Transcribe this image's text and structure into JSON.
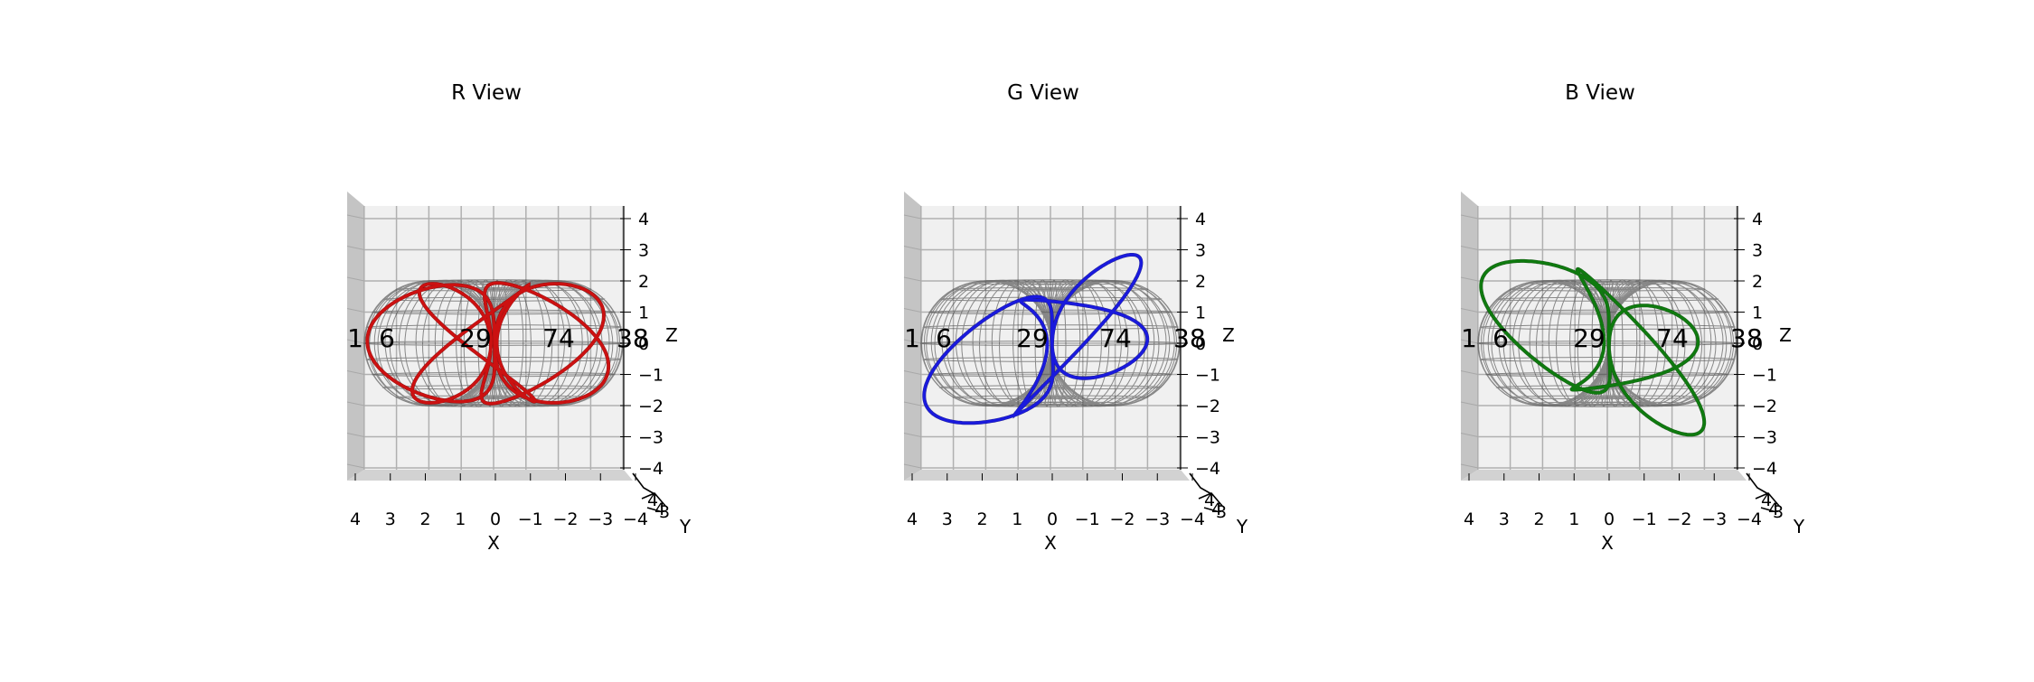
{
  "figure": {
    "background": "#ffffff"
  },
  "chart_data": [
    {
      "type": "3d-line",
      "title": "R View",
      "color": "#cc1111",
      "dark_color": "#800000",
      "xlabel": "X",
      "ylabel": "Y",
      "zlabel": "Z",
      "xticks": [
        "4",
        "3",
        "2",
        "1",
        "0",
        "−1",
        "−2",
        "−3",
        "−4"
      ],
      "zticks": [
        "4",
        "3",
        "2",
        "1",
        "0",
        "−1",
        "−2",
        "−3",
        "−4"
      ],
      "yticks": [
        "4",
        "4",
        "3"
      ],
      "xlim": [
        4,
        -4
      ],
      "zlim": [
        -4,
        4
      ],
      "annotations": [
        "1",
        "6",
        "29",
        "74",
        "38"
      ],
      "torus": {
        "R": 2,
        "r": 2
      },
      "curve": {
        "p": 3,
        "q": 5,
        "z_scale": 0.95
      }
    },
    {
      "type": "3d-line",
      "title": "G View",
      "color": "#1a1add",
      "dark_color": "#101080",
      "xlabel": "X",
      "ylabel": "Y",
      "zlabel": "Z",
      "xticks": [
        "4",
        "3",
        "2",
        "1",
        "0",
        "−1",
        "−2",
        "−3",
        "−4"
      ],
      "zticks": [
        "4",
        "3",
        "2",
        "1",
        "0",
        "−1",
        "−2",
        "−3",
        "−4"
      ],
      "yticks": [
        "4",
        "4",
        "3"
      ],
      "xlim": [
        4,
        -4
      ],
      "zlim": [
        -4,
        4
      ],
      "annotations": [
        "1",
        "6",
        "29",
        "74",
        "38"
      ],
      "torus": {
        "R": 2,
        "r": 2
      },
      "curve": {
        "p": 2,
        "q": 3,
        "z_scale": 0.9,
        "tilt": -0.45
      }
    },
    {
      "type": "3d-line",
      "title": "B View",
      "color": "#0f7a0f",
      "dark_color": "#0a4a0a",
      "xlabel": "X",
      "ylabel": "Y",
      "zlabel": "Z",
      "xticks": [
        "4",
        "3",
        "2",
        "1",
        "0",
        "−1",
        "−2",
        "−3",
        "−4"
      ],
      "zticks": [
        "4",
        "3",
        "2",
        "1",
        "0",
        "−1",
        "−2",
        "−3",
        "−4"
      ],
      "yticks": [
        "4",
        "4",
        "3"
      ],
      "xlim": [
        4,
        -4
      ],
      "zlim": [
        -4,
        4
      ],
      "annotations": [
        "1",
        "6",
        "29",
        "74",
        "38"
      ],
      "torus": {
        "R": 2,
        "r": 2
      },
      "curve": {
        "p": 2,
        "q": 3,
        "z_scale": 0.95,
        "tilt": 0.45
      }
    }
  ]
}
